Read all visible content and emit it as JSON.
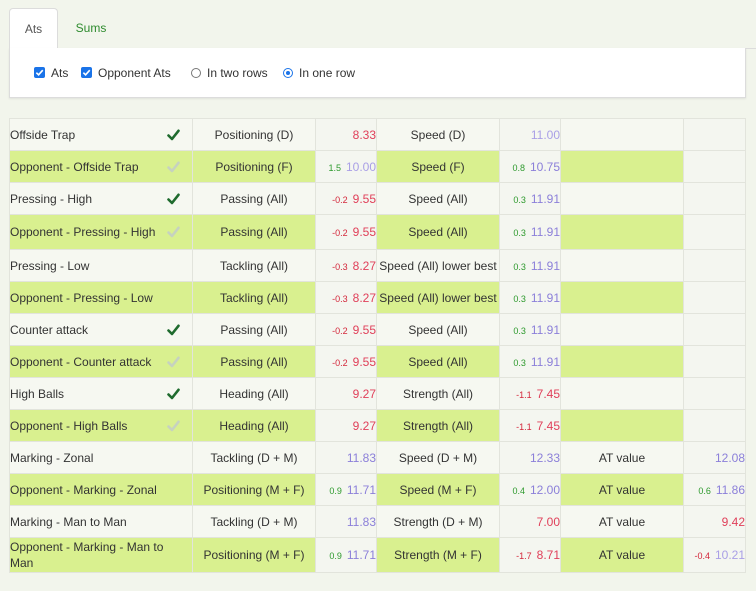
{
  "tabs": [
    {
      "label": "Ats",
      "active": true
    },
    {
      "label": "Sums",
      "active": false
    }
  ],
  "options": {
    "ats": {
      "label": "Ats",
      "checked": true
    },
    "opponent_ats": {
      "label": "Opponent Ats",
      "checked": true
    },
    "two_rows": {
      "label": "In two rows",
      "selected": false
    },
    "one_row": {
      "label": "In one row",
      "selected": true
    }
  },
  "colors": {
    "row_green": "#d9f08f",
    "value_red": "#e0405a",
    "value_purple": "#8b7fd9",
    "diff_positive": "#2e9a2e",
    "diff_negative": "#d3263a",
    "tick_dark": "#1f6b2e",
    "tick_light": "#c6d2c0"
  },
  "rows": [
    {
      "name": "Offside Trap",
      "tick": "dark",
      "style": "white",
      "a1": "Positioning (D)",
      "d1": "",
      "v1": "8.33",
      "c1": "red",
      "a2": "Speed (D)",
      "d2": "",
      "v2": "11.00",
      "c2": "faint",
      "a3": "",
      "d3": "",
      "v3": "",
      "c3": ""
    },
    {
      "name": "Opponent - Offside Trap",
      "tick": "light",
      "style": "green",
      "a1": "Positioning (F)",
      "d1": "1.5",
      "v1": "10.00",
      "c1": "faint",
      "a2": "Speed (F)",
      "d2": "0.8",
      "v2": "10.75",
      "c2": "purple",
      "a3": "",
      "d3": "",
      "v3": "",
      "c3": ""
    },
    {
      "name": "Pressing - High",
      "tick": "dark",
      "style": "white",
      "a1": "Passing (All)",
      "d1": "-0.2",
      "v1": "9.55",
      "c1": "red",
      "a2": "Speed (All)",
      "d2": "0.3",
      "v2": "11.91",
      "c2": "purple",
      "a3": "",
      "d3": "",
      "v3": "",
      "c3": ""
    },
    {
      "name": "Opponent - Pressing - High",
      "tick": "light",
      "style": "green",
      "tall": true,
      "a1": "Passing (All)",
      "d1": "-0.2",
      "v1": "9.55",
      "c1": "red",
      "a2": "Speed (All)",
      "d2": "0.3",
      "v2": "11.91",
      "c2": "purple",
      "a3": "",
      "d3": "",
      "v3": "",
      "c3": ""
    },
    {
      "name": "Pressing - Low",
      "tick": "",
      "style": "white",
      "a1": "Tackling (All)",
      "d1": "-0.3",
      "v1": "8.27",
      "c1": "red",
      "a2": "Speed (All) lower best",
      "d2": "0.3",
      "v2": "11.91",
      "c2": "purple",
      "a3": "",
      "d3": "",
      "v3": "",
      "c3": ""
    },
    {
      "name": "Opponent - Pressing - Low",
      "tick": "",
      "style": "green",
      "a1": "Tackling (All)",
      "d1": "-0.3",
      "v1": "8.27",
      "c1": "red",
      "a2": "Speed (All) lower best",
      "d2": "0.3",
      "v2": "11.91",
      "c2": "purple",
      "a3": "",
      "d3": "",
      "v3": "",
      "c3": ""
    },
    {
      "name": "Counter attack",
      "tick": "dark",
      "style": "white",
      "a1": "Passing (All)",
      "d1": "-0.2",
      "v1": "9.55",
      "c1": "red",
      "a2": "Speed (All)",
      "d2": "0.3",
      "v2": "11.91",
      "c2": "purple",
      "a3": "",
      "d3": "",
      "v3": "",
      "c3": ""
    },
    {
      "name": "Opponent - Counter attack",
      "tick": "light",
      "style": "green",
      "a1": "Passing (All)",
      "d1": "-0.2",
      "v1": "9.55",
      "c1": "red",
      "a2": "Speed (All)",
      "d2": "0.3",
      "v2": "11.91",
      "c2": "purple",
      "a3": "",
      "d3": "",
      "v3": "",
      "c3": ""
    },
    {
      "name": "High Balls",
      "tick": "dark",
      "style": "white",
      "a1": "Heading (All)",
      "d1": "",
      "v1": "9.27",
      "c1": "red",
      "a2": "Strength (All)",
      "d2": "-1.1",
      "v2": "7.45",
      "c2": "red",
      "a3": "",
      "d3": "",
      "v3": "",
      "c3": ""
    },
    {
      "name": "Opponent - High Balls",
      "tick": "light",
      "style": "green",
      "a1": "Heading (All)",
      "d1": "",
      "v1": "9.27",
      "c1": "red",
      "a2": "Strength (All)",
      "d2": "-1.1",
      "v2": "7.45",
      "c2": "red",
      "a3": "",
      "d3": "",
      "v3": "",
      "c3": ""
    },
    {
      "name": "Marking - Zonal",
      "tick": "",
      "style": "white",
      "a1": "Tackling (D + M)",
      "d1": "",
      "v1": "11.83",
      "c1": "purple",
      "a2": "Speed (D + M)",
      "d2": "",
      "v2": "12.33",
      "c2": "purple",
      "a3": "AT value",
      "d3": "",
      "v3": "12.08",
      "c3": "purple"
    },
    {
      "name": "Opponent - Marking - Zonal",
      "tick": "",
      "style": "green",
      "a1": "Positioning (M + F)",
      "d1": "0.9",
      "v1": "11.71",
      "c1": "purple",
      "a2": "Speed (M + F)",
      "d2": "0.4",
      "v2": "12.00",
      "c2": "purple",
      "a3": "AT value",
      "d3": "0.6",
      "v3": "11.86",
      "c3": "purple"
    },
    {
      "name": "Marking - Man to Man",
      "tick": "",
      "style": "white",
      "a1": "Tackling (D + M)",
      "d1": "",
      "v1": "11.83",
      "c1": "purple",
      "a2": "Strength (D + M)",
      "d2": "",
      "v2": "7.00",
      "c2": "red",
      "a3": "AT value",
      "d3": "",
      "v3": "9.42",
      "c3": "red"
    },
    {
      "name": "Opponent - Marking - Man to Man",
      "tick": "",
      "style": "green",
      "tall": true,
      "a1": "Positioning (M + F)",
      "d1": "0.9",
      "v1": "11.71",
      "c1": "purple",
      "a2": "Strength (M + F)",
      "d2": "-1.7",
      "v2": "8.71",
      "c2": "red",
      "a3": "AT value",
      "d3": "-0.4",
      "v3": "10.21",
      "c3": "faint"
    }
  ]
}
